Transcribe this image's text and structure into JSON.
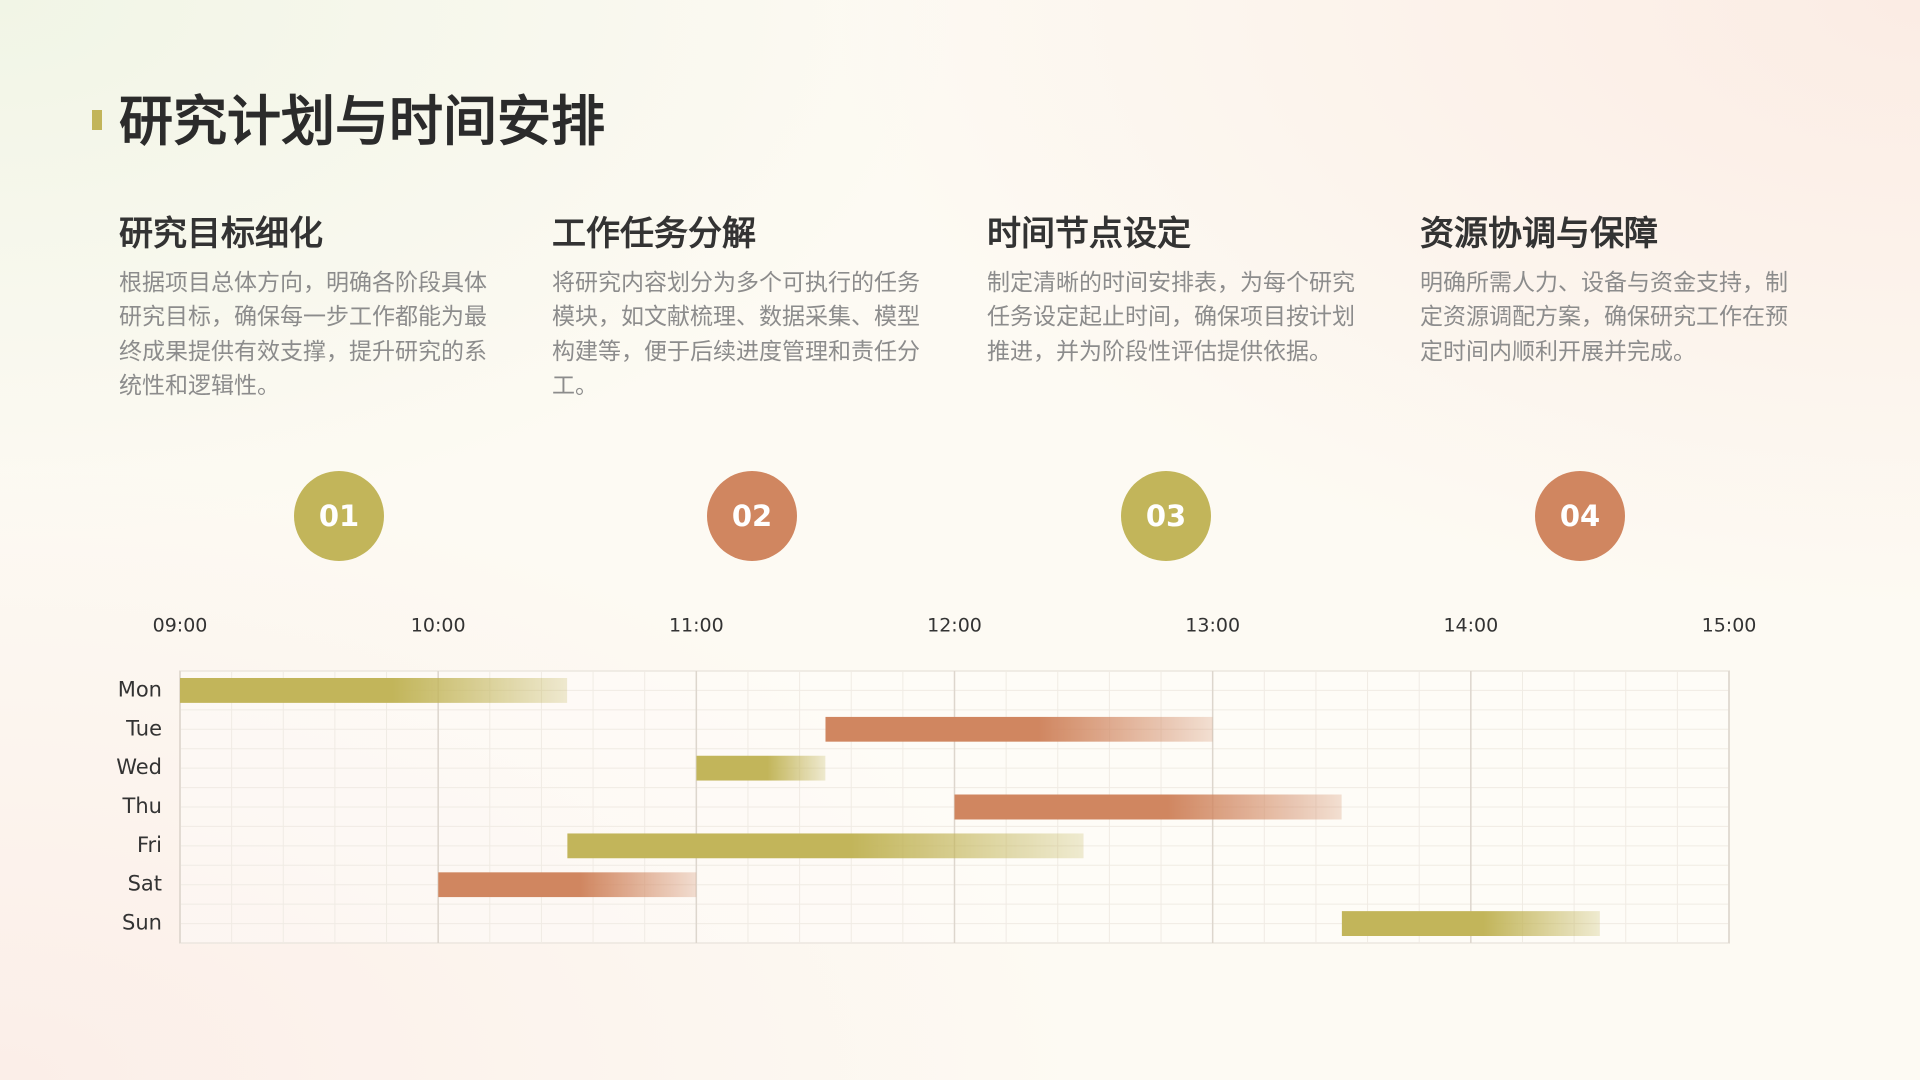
{
  "title": "研究计划与时间安排",
  "items": [
    {
      "number": "01",
      "heading": "研究目标细化",
      "body": "根据项目总体方向，明确各阶段具体研究目标，确保每一步工作都能为最终成果提供有效支撑，提升研究的系统性和逻辑性。"
    },
    {
      "number": "02",
      "heading": "工作任务分解",
      "body": "将研究内容划分为多个可执行的任务模块，如文献梳理、数据采集、模型构建等，便于后续进度管理和责任分工。"
    },
    {
      "number": "03",
      "heading": "时间节点设定",
      "body": "制定清晰的时间安排表，为每个研究任务设定起止时间，确保项目按计划推进，并为阶段性评估提供依据。"
    },
    {
      "number": "04",
      "heading": "资源协调与保障",
      "body": "明确所需人力、设备与资金支持，制定资源调配方案，确保研究工作在预定时间内顺利开展并完成。"
    }
  ],
  "chart_data": {
    "type": "gantt",
    "categories": [
      "Mon",
      "Tue",
      "Wed",
      "Thu",
      "Fri",
      "Sat",
      "Sun"
    ],
    "start": [
      9,
      11.5,
      11,
      12,
      10.5,
      10,
      13.5
    ],
    "end": [
      10.5,
      13,
      11.5,
      13.5,
      12.5,
      11,
      14.5
    ],
    "colors": [
      "#c2b55a",
      "#d08660",
      "#c2b55a",
      "#d08660",
      "#c2b55a",
      "#d08660",
      "#c2b55a"
    ],
    "xlim": [
      9,
      15
    ],
    "xticks": [
      {
        "value": 9,
        "label": "09:00"
      },
      {
        "value": 10,
        "label": "10:00"
      },
      {
        "value": 11,
        "label": "11:00"
      },
      {
        "value": 12,
        "label": "12:00"
      },
      {
        "value": 13,
        "label": "13:00"
      },
      {
        "value": 14,
        "label": "14:00"
      },
      {
        "value": 15,
        "label": "15:00"
      }
    ],
    "grid": true
  }
}
